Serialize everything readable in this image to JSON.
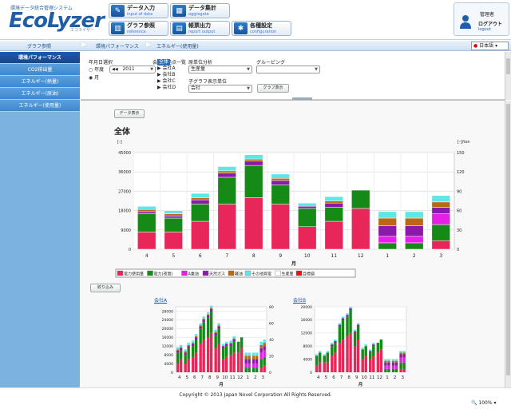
{
  "header": {
    "logo_subtitle": "環境データ統合管理システム",
    "logo_text": "EcoLyzer",
    "logo_kana": "エコライザー",
    "nav": [
      {
        "label": "データ入力",
        "sub": "input of data",
        "icon": "pencil-icon"
      },
      {
        "label": "データ集計",
        "sub": "aggregate",
        "icon": "calculator-icon"
      },
      {
        "label": "グラフ参照",
        "sub": "reference",
        "icon": "chart-icon"
      },
      {
        "label": "帳票出力",
        "sub": "report output",
        "icon": "printer-icon"
      },
      {
        "label": "各種設定",
        "sub": "configuration",
        "icon": "wrench-icon"
      }
    ],
    "user": {
      "name": "管理者",
      "logout_label": "ログアウト",
      "logout_sub": "logout"
    }
  },
  "breadcrumb": {
    "items": [
      "グラフ参照",
      "環境パフォーマンス",
      "エネルギー(使用量)"
    ],
    "language": "日本語"
  },
  "sidebar": {
    "items": [
      "環境パフォーマンス",
      "CO2排出量",
      "エネルギー(熱量)",
      "エネルギー(原油)",
      "エネルギー(使用量)"
    ],
    "active": 0
  },
  "filters": {
    "date_label": "年月日選択",
    "radio_year": "年度",
    "radio_month": "月",
    "prev": "◀◀",
    "year_value": "2011",
    "next": "▶",
    "company_label": "会社・拠点一覧",
    "tree_root": "全体",
    "tree_items": [
      "▶ 会社A",
      "▶ 会社B",
      "▶ 会社C",
      "▶ 会社D"
    ],
    "unit_label": "原単位分析",
    "unit_value": "生産量",
    "group_label": "グルーピング",
    "group_value": "",
    "child_label": "子グラフ表示単位",
    "child_value": "会社",
    "graph_button": "グラフ表示"
  },
  "main": {
    "data_button": "データ表示",
    "chart_title": "全体",
    "left_unit": "[-]",
    "right_unit": "[-]/ton",
    "filter_button": "絞り込み",
    "sub_a": "会社A",
    "sub_b": "会社B"
  },
  "colors": {
    "電力使用量": "#e8265a",
    "電力(夜間)": "#168a16",
    "A重油": "#e51fe5",
    "天然ガス": "#8a1aa8",
    "軽油": "#b86a12",
    "その他買電": "#5fe6e6",
    "生産量": "#ffffff",
    "目標値": "#e81414"
  },
  "chart_data": [
    {
      "type": "bar",
      "title": "全体",
      "xlabel": "月",
      "ylabel": "[-]",
      "y2label": "[-]/ton",
      "categories": [
        "4",
        "5",
        "6",
        "7",
        "8",
        "9",
        "10",
        "11",
        "12",
        "1",
        "2",
        "3"
      ],
      "ylim": [
        0,
        45000
      ],
      "yticks": [
        0,
        9000,
        18000,
        27000,
        36000,
        45000
      ],
      "y2lim": [
        0,
        150
      ],
      "y2ticks": [
        0,
        30,
        60,
        90,
        120,
        150
      ],
      "series": [
        {
          "name": "電力使用量",
          "values": [
            8000,
            8000,
            13000,
            21000,
            24000,
            21000,
            10500,
            13000,
            19000,
            0,
            0,
            4000
          ]
        },
        {
          "name": "電力(夜間)",
          "values": [
            8500,
            6500,
            8000,
            12500,
            15000,
            9000,
            8500,
            6500,
            8500,
            3000,
            3000,
            7500
          ]
        },
        {
          "name": "A重油",
          "values": [
            0,
            0,
            0,
            0,
            0,
            0,
            0,
            0,
            0,
            3000,
            3000,
            5000
          ]
        },
        {
          "name": "天然ガス",
          "values": [
            1000,
            1000,
            2000,
            2000,
            2000,
            2000,
            1000,
            2000,
            0,
            5000,
            5000,
            3000
          ]
        },
        {
          "name": "軽油",
          "values": [
            1000,
            1000,
            1000,
            1000,
            1000,
            1000,
            0,
            1000,
            0,
            3500,
            3500,
            2500
          ]
        },
        {
          "name": "その他買電",
          "values": [
            1500,
            1500,
            2000,
            2000,
            2000,
            2000,
            1500,
            2000,
            0,
            3000,
            3000,
            3000
          ]
        }
      ],
      "legend": [
        "電力使用量",
        "電力(夜間)",
        "A重油",
        "天然ガス",
        "軽油",
        "その他買電",
        "生産量",
        "目標値"
      ],
      "legend_position": "bottom",
      "grid": true
    },
    {
      "type": "bar",
      "title": "会社A",
      "xlabel": "月",
      "categories": [
        "4",
        "5",
        "6",
        "7",
        "8",
        "9",
        "10",
        "11",
        "12",
        "1",
        "2",
        "3"
      ],
      "ylim": [
        0,
        30000
      ],
      "yticks": [
        0,
        4000,
        8000,
        12000,
        16000,
        20000,
        24000,
        28000
      ],
      "y2lim": [
        0,
        80
      ],
      "y2ticks": [
        0,
        20,
        40,
        60,
        80
      ],
      "series": [
        {
          "name": "電力使用量",
          "values": [
            [
              4000,
              6000
            ],
            [
              4000,
              6000
            ],
            [
              7000,
              9000
            ],
            [
              13000,
              15000
            ],
            [
              16000,
              18000
            ],
            [
              11000,
              13000
            ],
            [
              6000,
              7000
            ],
            [
              8000,
              9000
            ],
            [
              9000,
              11000
            ],
            [
              0,
              0
            ],
            [
              0,
              0
            ],
            [
              2000,
              3000
            ]
          ]
        },
        {
          "name": "電力(夜間)",
          "values": [
            [
              5000,
              4000
            ],
            [
              4000,
              5000
            ],
            [
              5000,
              6000
            ],
            [
              7000,
              8000
            ],
            [
              9000,
              10000
            ],
            [
              6000,
              7000
            ],
            [
              5000,
              5000
            ],
            [
              4000,
              5000
            ],
            [
              5000,
              5000
            ],
            [
              2000,
              2000
            ],
            [
              2000,
              2000
            ],
            [
              4000,
              4000
            ]
          ]
        },
        {
          "name": "A重油",
          "values": [
            [
              0,
              0
            ],
            [
              0,
              0
            ],
            [
              0,
              0
            ],
            [
              0,
              0
            ],
            [
              0,
              0
            ],
            [
              0,
              0
            ],
            [
              0,
              0
            ],
            [
              0,
              0
            ],
            [
              0,
              0
            ],
            [
              2000,
              2000
            ],
            [
              2000,
              2000
            ],
            [
              3000,
              3000
            ]
          ]
        },
        {
          "name": "天然ガス",
          "values": [
            [
              1000,
              1000
            ],
            [
              1000,
              1000
            ],
            [
              1000,
              1000
            ],
            [
              1000,
              1000
            ],
            [
              1000,
              1000
            ],
            [
              1000,
              1000
            ],
            [
              1000,
              1000
            ],
            [
              1000,
              1000
            ],
            [
              0,
              0
            ],
            [
              2000,
              2000
            ],
            [
              2000,
              2000
            ],
            [
              2000,
              2000
            ]
          ]
        },
        {
          "name": "軽油",
          "values": [
            [
              500,
              500
            ],
            [
              500,
              500
            ],
            [
              500,
              500
            ],
            [
              500,
              500
            ],
            [
              500,
              500
            ],
            [
              500,
              500
            ],
            [
              0,
              0
            ],
            [
              500,
              500
            ],
            [
              0,
              0
            ],
            [
              1500,
              1500
            ],
            [
              1500,
              1500
            ],
            [
              1500,
              1500
            ]
          ]
        },
        {
          "name": "その他買電",
          "values": [
            [
              1000,
              1000
            ],
            [
              1000,
              1000
            ],
            [
              1000,
              1000
            ],
            [
              1000,
              1000
            ],
            [
              1000,
              1000
            ],
            [
              1000,
              1000
            ],
            [
              1000,
              1000
            ],
            [
              1000,
              1000
            ],
            [
              0,
              0
            ],
            [
              1500,
              1500
            ],
            [
              1500,
              1500
            ],
            [
              1500,
              1500
            ]
          ]
        }
      ]
    },
    {
      "type": "bar",
      "title": "会社B",
      "xlabel": "月",
      "categories": [
        "4",
        "5",
        "6",
        "7",
        "8",
        "9",
        "10",
        "11",
        "12",
        "1",
        "2",
        "3"
      ],
      "ylim": [
        0,
        20000
      ],
      "yticks": [
        0,
        4000,
        8000,
        12000,
        16000,
        20000
      ],
      "series": [
        {
          "name": "電力使用量",
          "values": [
            [
              2000,
              3000
            ],
            [
              3000,
              3000
            ],
            [
              5000,
              6000
            ],
            [
              9000,
              10000
            ],
            [
              11000,
              12000
            ],
            [
              8000,
              10000
            ],
            [
              4000,
              5000
            ],
            [
              4000,
              5000
            ],
            [
              6000,
              7000
            ],
            [
              0,
              0
            ],
            [
              0,
              0
            ],
            [
              1000,
              1000
            ]
          ]
        },
        {
          "name": "電力(夜間)",
          "values": [
            [
              3000,
              3000
            ],
            [
              2000,
              3000
            ],
            [
              3000,
              3000
            ],
            [
              5000,
              6000
            ],
            [
              6000,
              7000
            ],
            [
              4000,
              4000
            ],
            [
              3000,
              3000
            ],
            [
              2000,
              3000
            ],
            [
              3000,
              3000
            ],
            [
              1000,
              1000
            ],
            [
              1000,
              1000
            ],
            [
              2000,
              2000
            ]
          ]
        },
        {
          "name": "A重油",
          "values": [
            [
              0,
              0
            ],
            [
              0,
              0
            ],
            [
              0,
              0
            ],
            [
              0,
              0
            ],
            [
              0,
              0
            ],
            [
              0,
              0
            ],
            [
              0,
              0
            ],
            [
              0,
              0
            ],
            [
              0,
              0
            ],
            [
              1000,
              1000
            ],
            [
              1000,
              1000
            ],
            [
              1500,
              1500
            ]
          ]
        },
        {
          "name": "天然ガス",
          "values": [
            [
              0,
              0
            ],
            [
              0,
              0
            ],
            [
              500,
              500
            ],
            [
              500,
              500
            ],
            [
              500,
              500
            ],
            [
              500,
              500
            ],
            [
              0,
              0
            ],
            [
              500,
              500
            ],
            [
              0,
              0
            ],
            [
              1000,
              1000
            ],
            [
              1000,
              1000
            ],
            [
              1000,
              1000
            ]
          ]
        },
        {
          "name": "軽油",
          "values": [
            [
              0,
              0
            ],
            [
              0,
              0
            ],
            [
              0,
              0
            ],
            [
              0,
              0
            ],
            [
              0,
              0
            ],
            [
              0,
              0
            ],
            [
              0,
              0
            ],
            [
              0,
              0
            ],
            [
              0,
              0
            ],
            [
              500,
              500
            ],
            [
              500,
              500
            ],
            [
              500,
              500
            ]
          ]
        },
        {
          "name": "その他買電",
          "values": [
            [
              500,
              500
            ],
            [
              500,
              500
            ],
            [
              500,
              500
            ],
            [
              500,
              500
            ],
            [
              500,
              500
            ],
            [
              500,
              500
            ],
            [
              500,
              500
            ],
            [
              500,
              500
            ],
            [
              0,
              0
            ],
            [
              500,
              500
            ],
            [
              500,
              500
            ],
            [
              500,
              500
            ]
          ]
        }
      ]
    }
  ],
  "footer": {
    "copyright": "Copyright © 2013 Japan Novel Corporation All Rights Reserved.",
    "zoom": "100%"
  }
}
